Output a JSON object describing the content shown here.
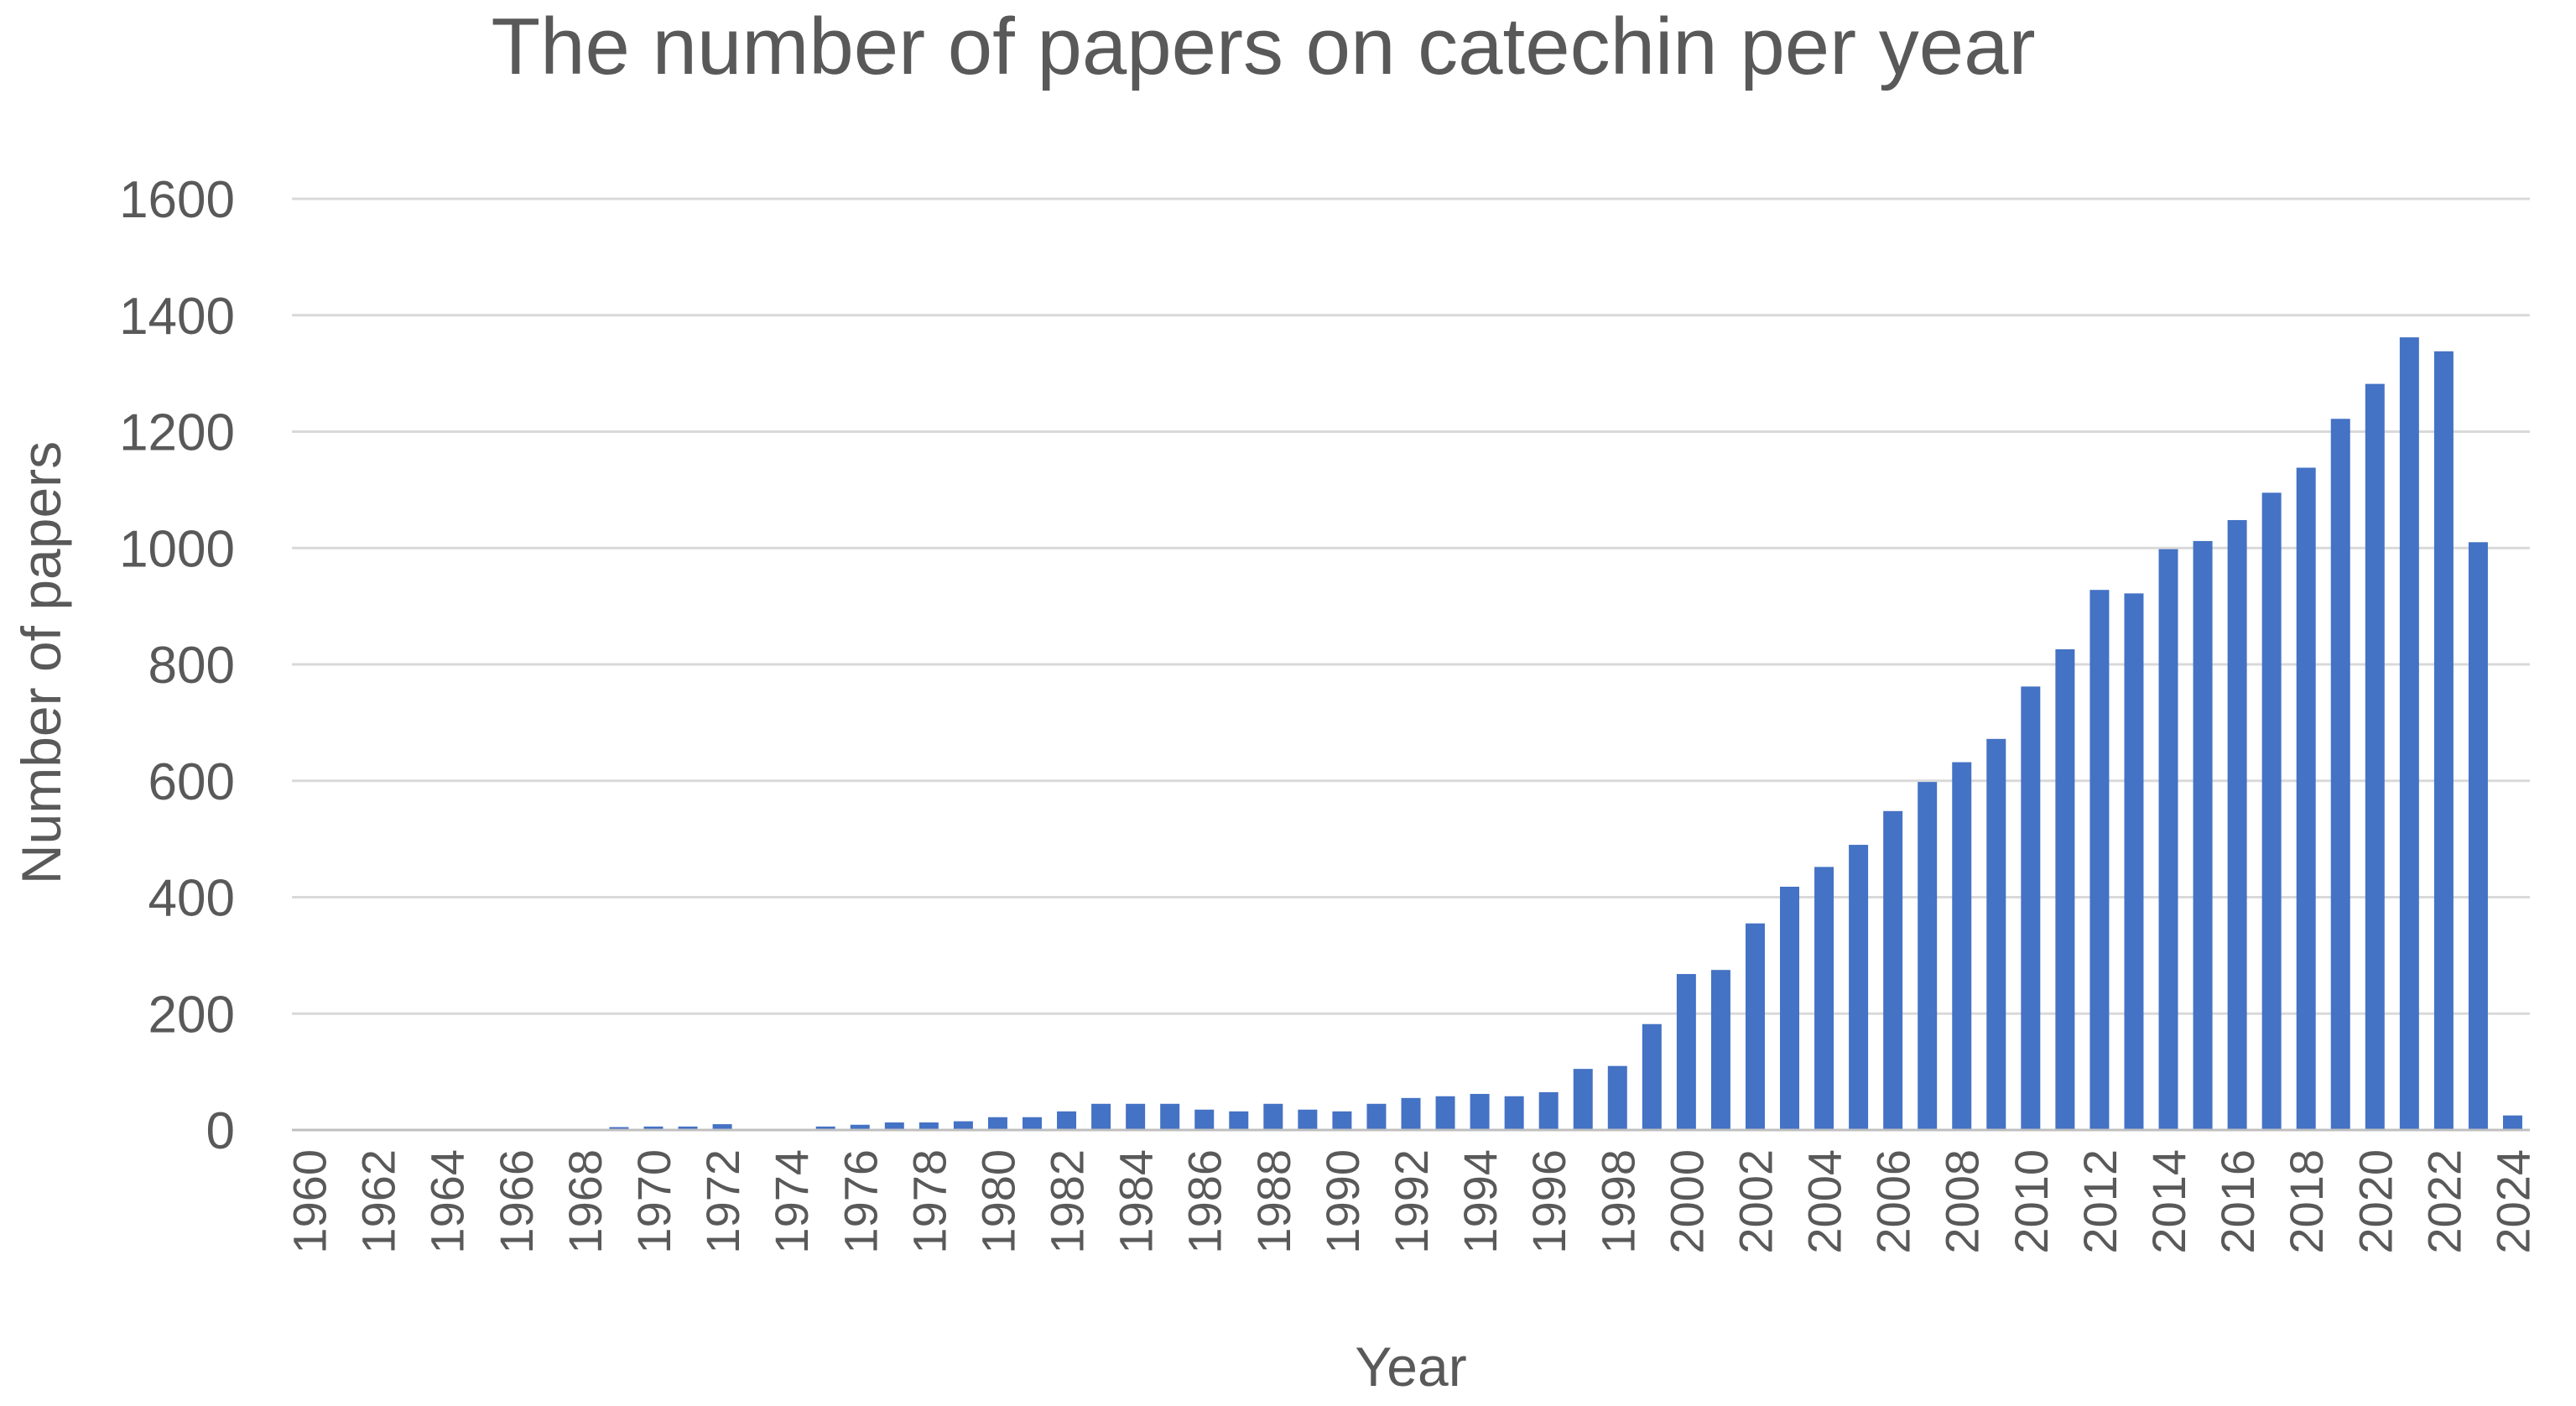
{
  "chart_data": {
    "type": "bar",
    "title": "The number of papers on catechin per year",
    "xlabel": "Year",
    "ylabel": "Number of papers",
    "ylim": [
      0,
      1600
    ],
    "yticks": [
      0,
      200,
      400,
      600,
      800,
      1000,
      1200,
      1400,
      1600
    ],
    "grid": true,
    "legend": "none",
    "colors": {
      "bar": "#4472C4",
      "grid": "#D9D9D9",
      "axis": "#BFBFBF",
      "text": "#595959"
    },
    "categories": [
      "1960",
      "1961",
      "1962",
      "1963",
      "1964",
      "1965",
      "1966",
      "1967",
      "1968",
      "1969",
      "1970",
      "1971",
      "1972",
      "1973",
      "1974",
      "1975",
      "1976",
      "1977",
      "1978",
      "1979",
      "1980",
      "1981",
      "1982",
      "1983",
      "1984",
      "1985",
      "1986",
      "1987",
      "1988",
      "1989",
      "1990",
      "1991",
      "1992",
      "1993",
      "1994",
      "1995",
      "1996",
      "1997",
      "1998",
      "1999",
      "2000",
      "2001",
      "2002",
      "2003",
      "2004",
      "2005",
      "2006",
      "2007",
      "2008",
      "2009",
      "2010",
      "2011",
      "2012",
      "2013",
      "2014",
      "2015",
      "2016",
      "2017",
      "2018",
      "2019",
      "2020",
      "2021",
      "2022",
      "2023",
      "2024"
    ],
    "tick_labels": [
      "1960",
      "1962",
      "1964",
      "1966",
      "1968",
      "1970",
      "1972",
      "1974",
      "1976",
      "1978",
      "1980",
      "1982",
      "1984",
      "1986",
      "1988",
      "1990",
      "1992",
      "1994",
      "1996",
      "1998",
      "2000",
      "2002",
      "2004",
      "2006",
      "2008",
      "2010",
      "2012",
      "2014",
      "2016",
      "2018",
      "2020",
      "2022",
      "2024"
    ],
    "values": [
      2,
      0,
      0,
      0,
      1,
      0,
      0,
      0,
      0,
      5,
      6,
      6,
      10,
      0,
      0,
      6,
      9,
      13,
      13,
      15,
      22,
      22,
      32,
      45,
      45,
      45,
      35,
      32,
      45,
      35,
      32,
      45,
      55,
      58,
      62,
      58,
      65,
      105,
      110,
      182,
      268,
      275,
      355,
      418,
      452,
      490,
      548,
      598,
      632,
      672,
      762,
      826,
      928,
      922,
      998,
      1012,
      1048,
      1095,
      1138,
      1222,
      1282,
      1362,
      1338,
      1010,
      25
    ]
  }
}
